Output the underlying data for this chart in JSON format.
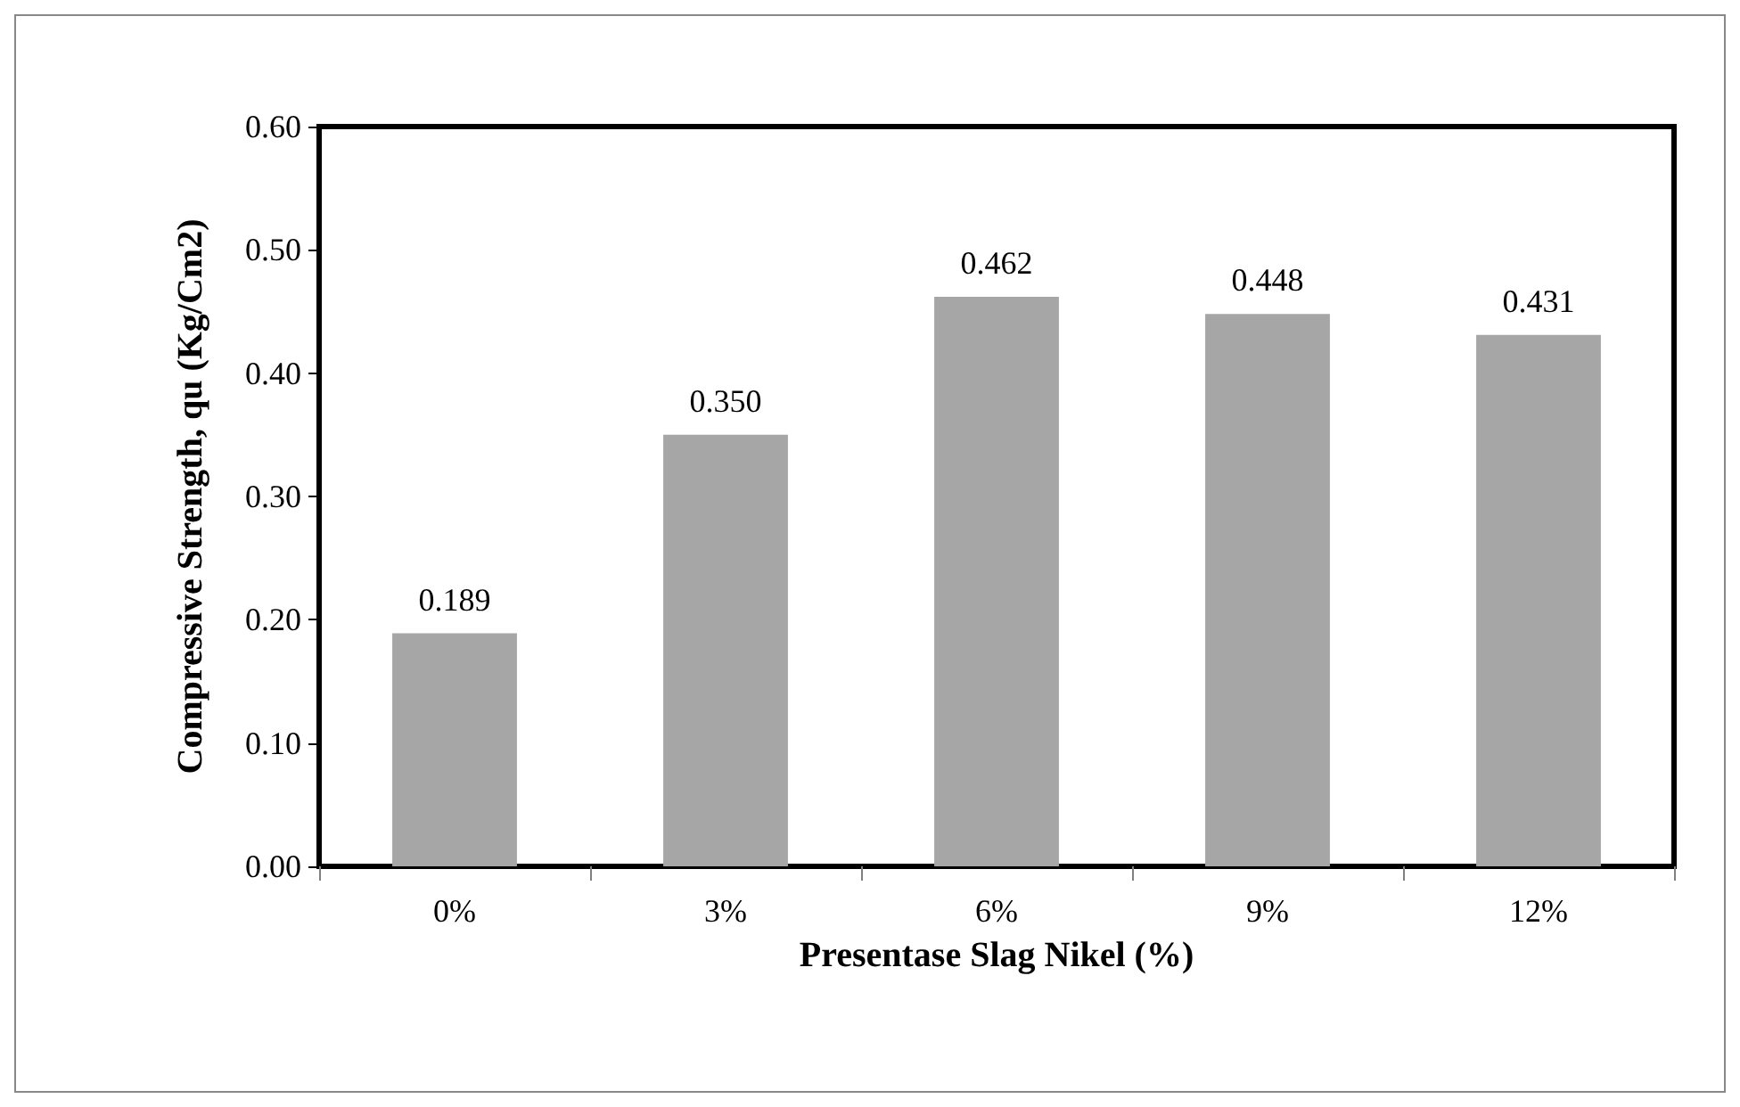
{
  "chart_data": {
    "type": "bar",
    "xlabel": "Presentase Slag Nikel (%)",
    "ylabel": "Compressive Strength, qu (Kg/Cm2)",
    "categories": [
      "0%",
      "3%",
      "6%",
      "9%",
      "12%"
    ],
    "values": [
      0.189,
      0.35,
      0.462,
      0.448,
      0.431
    ],
    "value_labels": [
      "0.189",
      "0.350",
      "0.462",
      "0.448",
      "0.431"
    ],
    "color": "#a6a6a6",
    "ylim": [
      0,
      0.6
    ],
    "yticks": [
      {
        "value": 0,
        "label": "0.00"
      },
      {
        "value": 0.1,
        "label": "0.10"
      },
      {
        "value": 0.2,
        "label": "0.20"
      },
      {
        "value": 0.3,
        "label": "0.30"
      },
      {
        "value": 0.4,
        "label": "0.40"
      },
      {
        "value": 0.5,
        "label": "0.50"
      },
      {
        "value": 0.6,
        "label": "0.60"
      }
    ],
    "grid": false
  }
}
